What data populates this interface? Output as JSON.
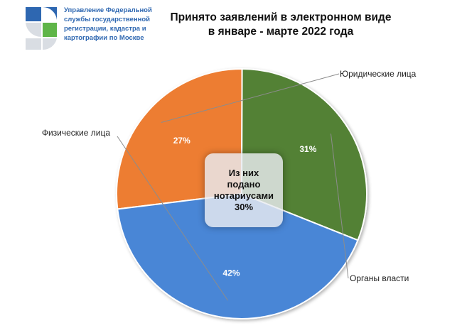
{
  "logo": {
    "icon": "rosreestr-emblem-icon",
    "lines": [
      "Управление Федеральной",
      "службы государственной",
      "регистрации, кадастра и",
      "картографии по Москве"
    ]
  },
  "chart_data": {
    "type": "pie",
    "title": "Принято заявлений в электронном виде в январе - марте 2022 года",
    "title_lines": [
      "Принято заявлений в электронном виде",
      "в январе - марте 2022 года"
    ],
    "slices": [
      {
        "name": "Юридические лица",
        "value": 27,
        "label": "27%",
        "color": "#ed7d31"
      },
      {
        "name": "Органы власти",
        "value": 31,
        "label": "31%",
        "color": "#538135"
      },
      {
        "name": "Физические лица",
        "value": 42,
        "label": "42%",
        "color": "#4a86d6"
      }
    ],
    "center_note": {
      "lines": [
        "Из них",
        "подано",
        "нотариусами",
        "30%"
      ]
    },
    "legend": "callouts"
  }
}
